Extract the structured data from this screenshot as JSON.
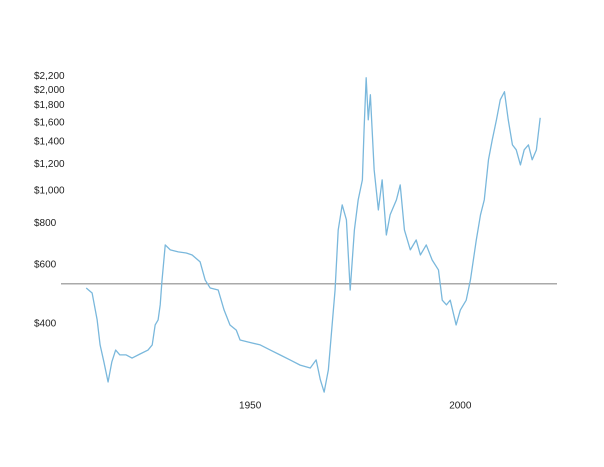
{
  "chart_data": {
    "type": "line",
    "color": "#7ab8dc",
    "log_y": true,
    "x": [
      1911,
      1912.4,
      1913.6,
      1914.3,
      1915.2,
      1916.2,
      1917.1,
      1918,
      1919,
      1920.5,
      1921.9,
      1923.8,
      1925.7,
      1926.7,
      1927.4,
      1928.1,
      1928.6,
      1929,
      1929.8,
      1931,
      1932.9,
      1934.8,
      1936.2,
      1938.1,
      1939.3,
      1940.5,
      1942.4,
      1943.8,
      1945.2,
      1946.7,
      1947.6,
      1949.5,
      1952.4,
      1954.8,
      1957.1,
      1959.5,
      1961.9,
      1964.3,
      1965.7,
      1966.7,
      1967.6,
      1968.6,
      1969.5,
      1970.2,
      1970.95,
      1971.9,
      1972.9,
      1973.8,
      1974.8,
      1975.7,
      1976.7,
      1977.1,
      1977.6,
      1978.1,
      1978.6,
      1979.5,
      1980.5,
      1981.4,
      1982.4,
      1983.3,
      1984.8,
      1985.7,
      1986.7,
      1988.1,
      1989.5,
      1990.5,
      1991.9,
      1993.3,
      1994.8,
      1995.7,
      1996.7,
      1997.6,
      1999,
      2000,
      2001.4,
      2002.4,
      2003.8,
      2004.8,
      2005.7,
      2006.7,
      2007.6,
      2008.6,
      2009.5,
      2010.5,
      2011.4,
      2012.4,
      2013.3,
      2014.3,
      2015.2,
      2016.2,
      2017.1,
      2018.1,
      2019
    ],
    "values": [
      512,
      495,
      411,
      346,
      308,
      268,
      308,
      334,
      323,
      323,
      316,
      325,
      334,
      346,
      397,
      411,
      456,
      534,
      689,
      666,
      657,
      652,
      643,
      613,
      541,
      512,
      505,
      440,
      397,
      383,
      358,
      353,
      346,
      334,
      323,
      312,
      301,
      295,
      312,
      272,
      250,
      291,
      397,
      505,
      764,
      908,
      819,
      505,
      764,
      940,
      1079,
      1523,
      2180,
      1632,
      1939,
      1156,
      877,
      1079,
      738,
      848,
      940,
      1042,
      764,
      666,
      713,
      643,
      689,
      621,
      580,
      471,
      456,
      471,
      397,
      440,
      471,
      541,
      713,
      848,
      940,
      1239,
      1422,
      1632,
      1873,
      1980,
      1632,
      1373,
      1327,
      1196,
      1327,
      1373,
      1239,
      1327,
      1654
    ],
    "xlim": [
      1905,
      2023
    ],
    "xticks": [
      1950,
      2000
    ],
    "ylim": [
      240,
      2300
    ],
    "yticks": [
      {
        "value": 400,
        "label": "$400"
      },
      {
        "value": 600,
        "label": "$600"
      },
      {
        "value": 800,
        "label": "$800"
      },
      {
        "value": 1000,
        "label": "$1,000"
      },
      {
        "value": 1200,
        "label": "$1,200"
      },
      {
        "value": 1400,
        "label": "$1,400"
      },
      {
        "value": 1600,
        "label": "$1,600"
      },
      {
        "value": 1800,
        "label": "$1,800"
      },
      {
        "value": 2000,
        "label": "$2,000"
      },
      {
        "value": 2200,
        "label": "$2,200"
      }
    ],
    "hline": 527,
    "hline_color": "#555555"
  }
}
